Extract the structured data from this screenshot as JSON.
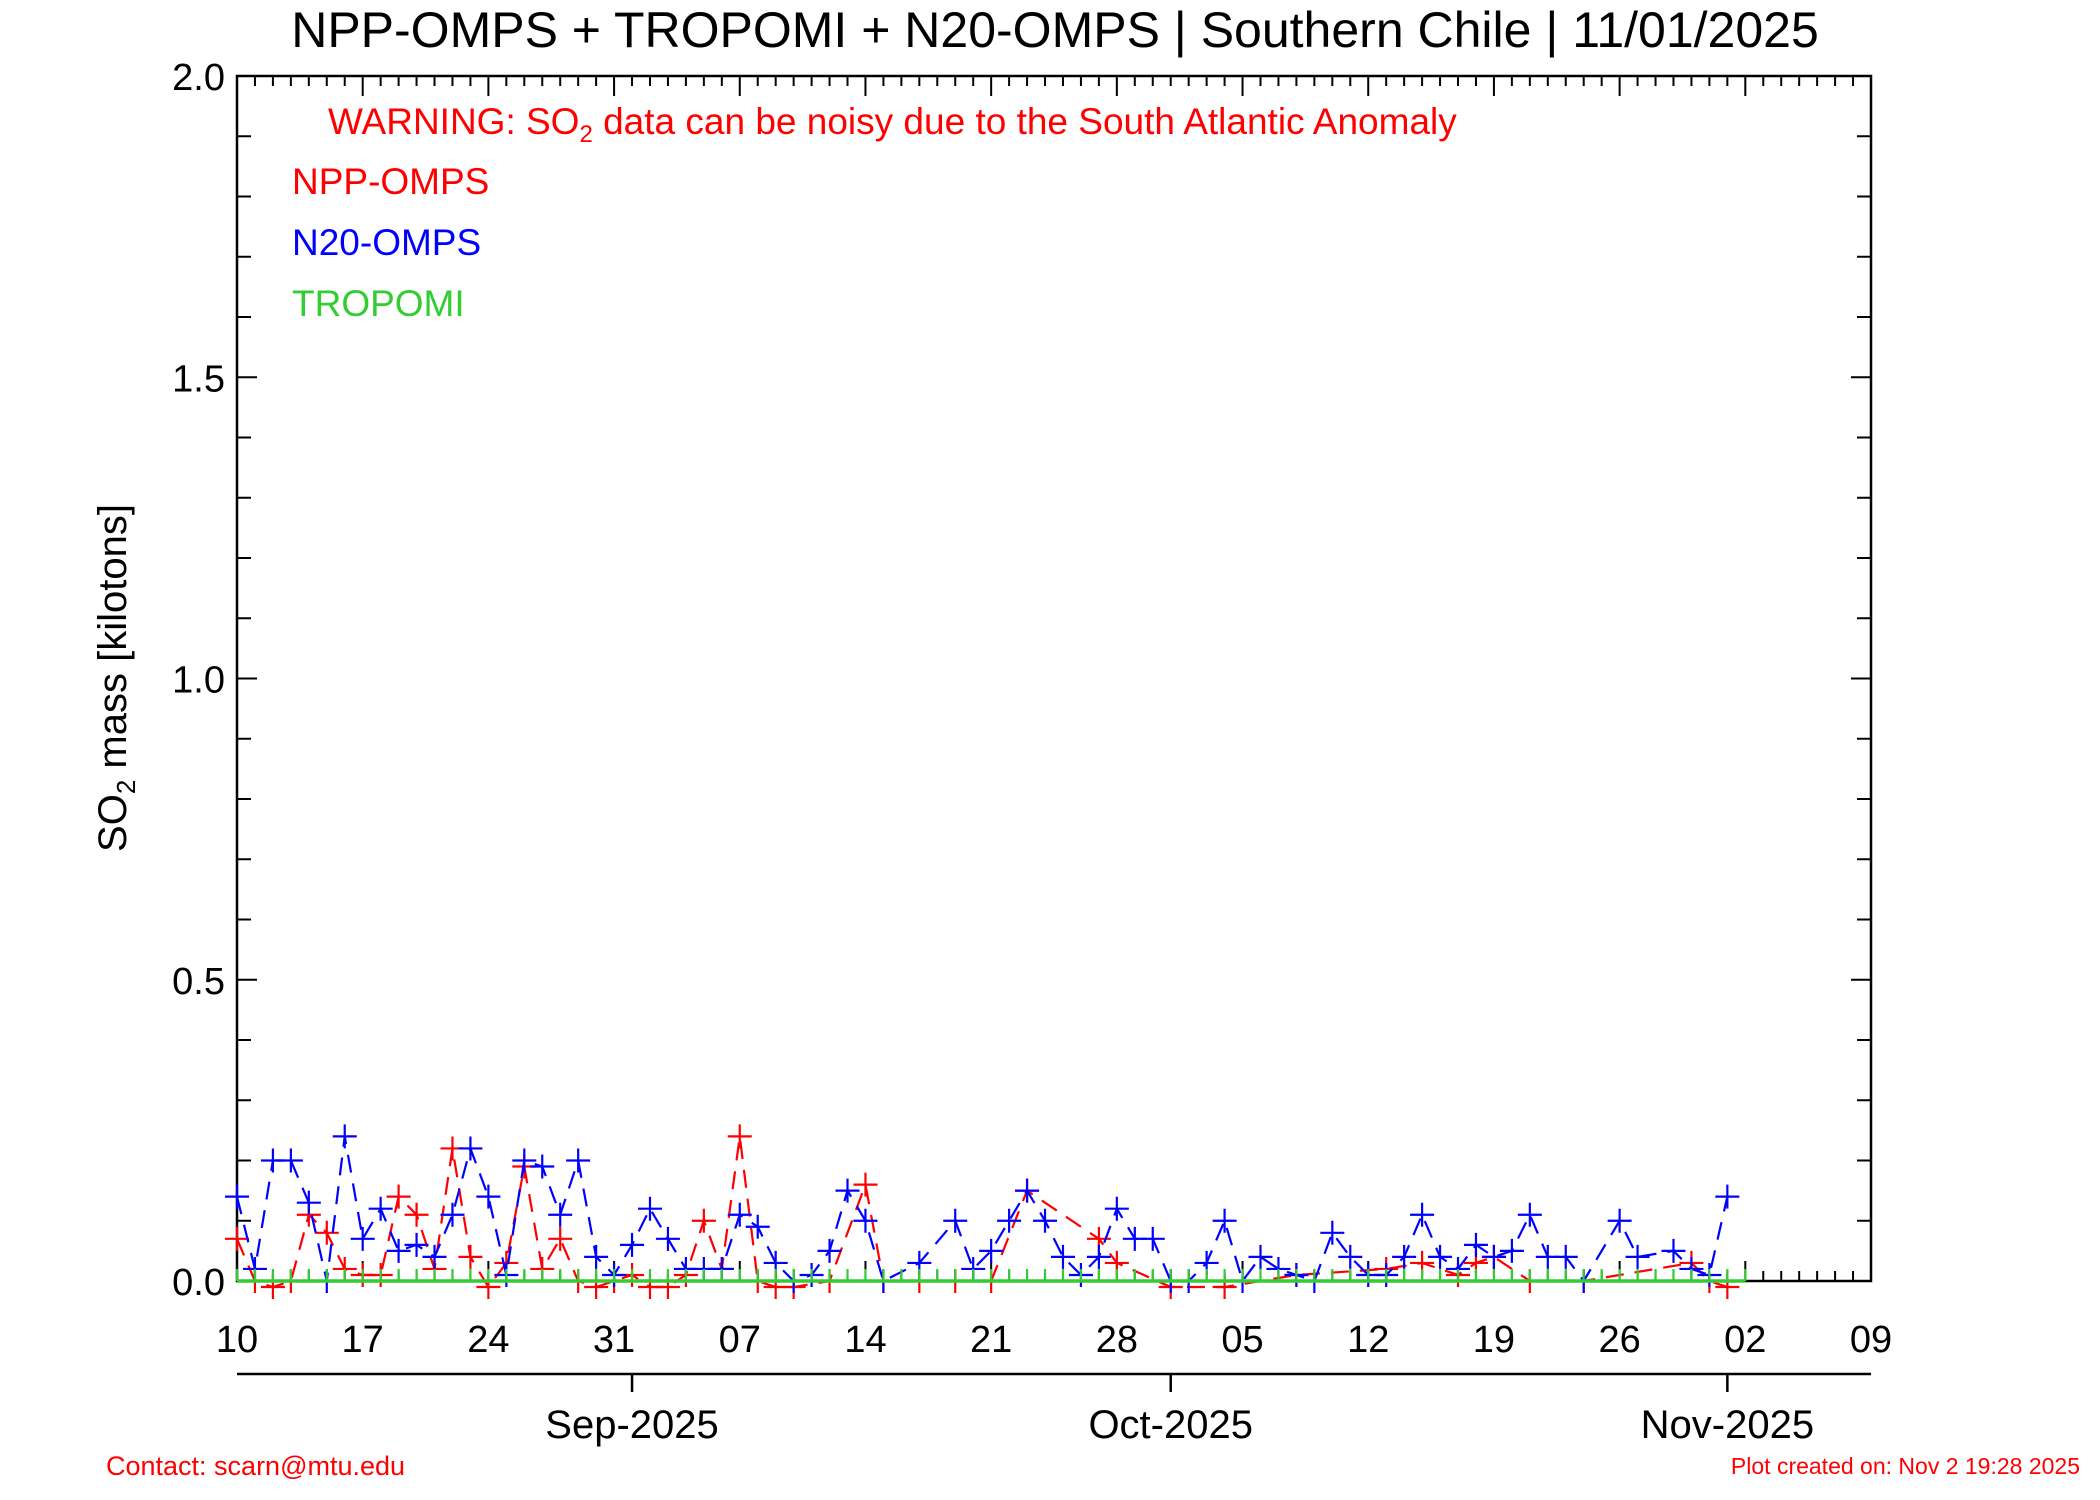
{
  "chart_data": {
    "type": "line",
    "title": "NPP-OMPS + TROPOMI + N20-OMPS | Southern Chile | 11/01/2025",
    "ylabel_prefix": "SO",
    "ylabel_sub": "2",
    "ylabel_suffix": " mass [kilotons]",
    "ylim": [
      0,
      2.0
    ],
    "yticks": [
      0.0,
      0.5,
      1.0,
      1.5,
      2.0
    ],
    "ytick_labels": [
      "0.0",
      "0.5",
      "1.0",
      "1.5",
      "2.0"
    ],
    "xlim": [
      "2025-08-10",
      "2025-11-09"
    ],
    "xticks": [
      "2025-08-10",
      "2025-08-17",
      "2025-08-24",
      "2025-08-31",
      "2025-09-07",
      "2025-09-14",
      "2025-09-21",
      "2025-09-28",
      "2025-10-05",
      "2025-10-12",
      "2025-10-19",
      "2025-10-26",
      "2025-11-02",
      "2025-11-09"
    ],
    "xtick_labels": [
      "10",
      "17",
      "24",
      "31",
      "07",
      "14",
      "21",
      "28",
      "05",
      "12",
      "19",
      "26",
      "02",
      "09"
    ],
    "month_ticks": [
      "2025-09-01",
      "2025-10-01",
      "2025-11-01"
    ],
    "month_labels": [
      "Sep-2025",
      "Oct-2025",
      "Nov-2025"
    ],
    "warning": {
      "prefix": "WARNING: SO",
      "sub": "2",
      "suffix": " data can be noisy due to the South Atlantic Anomaly",
      "color": "#ff0000"
    },
    "legend": {
      "placement": "top-left",
      "entries": [
        {
          "label": "NPP-OMPS",
          "color": "#ff0000"
        },
        {
          "label": "N20-OMPS",
          "color": "#0000ff"
        },
        {
          "label": "TROPOMI",
          "color": "#33cc33"
        }
      ]
    },
    "series": [
      {
        "name": "NPP-OMPS",
        "color": "#ff0000",
        "style": "dashed",
        "marker": "plus",
        "points": [
          [
            "2025-08-10",
            0.07
          ],
          [
            "2025-08-11",
            0.0
          ],
          [
            "2025-08-12",
            -0.01
          ],
          [
            "2025-08-13",
            0.0
          ],
          [
            "2025-08-14",
            0.11
          ],
          [
            "2025-08-15",
            0.08
          ],
          [
            "2025-08-16",
            0.02
          ],
          [
            "2025-08-17",
            0.01
          ],
          [
            "2025-08-18",
            0.01
          ],
          [
            "2025-08-19",
            0.14
          ],
          [
            "2025-08-20",
            0.11
          ],
          [
            "2025-08-21",
            0.02
          ],
          [
            "2025-08-22",
            0.22
          ],
          [
            "2025-08-23",
            0.04
          ],
          [
            "2025-08-24",
            -0.01
          ],
          [
            "2025-08-25",
            0.03
          ],
          [
            "2025-08-26",
            0.19
          ],
          [
            "2025-08-27",
            0.02
          ],
          [
            "2025-08-28",
            0.07
          ],
          [
            "2025-08-29",
            0.0
          ],
          [
            "2025-08-30",
            -0.01
          ],
          [
            "2025-08-31",
            0.0
          ],
          [
            "2025-09-01",
            0.01
          ],
          [
            "2025-09-02",
            -0.01
          ],
          [
            "2025-09-03",
            -0.01
          ],
          [
            "2025-09-04",
            0.01
          ],
          [
            "2025-09-05",
            0.1
          ],
          [
            "2025-09-06",
            0.02
          ],
          [
            "2025-09-07",
            0.24
          ],
          [
            "2025-09-08",
            0.0
          ],
          [
            "2025-09-09",
            -0.01
          ],
          [
            "2025-09-10",
            -0.01
          ],
          [
            "2025-09-12",
            0.0
          ],
          [
            "2025-09-14",
            0.16
          ],
          [
            "2025-09-15",
            0.0
          ],
          [
            "2025-09-17",
            0.0
          ],
          [
            "2025-09-19",
            0.0
          ],
          [
            "2025-09-21",
            0.0
          ],
          [
            "2025-09-23",
            0.15
          ],
          [
            "2025-09-27",
            0.07
          ],
          [
            "2025-09-28",
            0.03
          ],
          [
            "2025-10-01",
            -0.01
          ],
          [
            "2025-10-04",
            -0.01
          ],
          [
            "2025-10-08",
            0.01
          ],
          [
            "2025-10-13",
            0.02
          ],
          [
            "2025-10-15",
            0.03
          ],
          [
            "2025-10-17",
            0.01
          ],
          [
            "2025-10-18",
            0.03
          ],
          [
            "2025-10-19",
            0.04
          ],
          [
            "2025-10-21",
            0.0
          ],
          [
            "2025-10-24",
            0.0
          ],
          [
            "2025-10-30",
            0.03
          ],
          [
            "2025-10-31",
            0.0
          ],
          [
            "2025-11-01",
            -0.01
          ]
        ]
      },
      {
        "name": "N20-OMPS",
        "color": "#0000ff",
        "style": "dashed",
        "marker": "plus",
        "points": [
          [
            "2025-08-10",
            0.14
          ],
          [
            "2025-08-11",
            0.02
          ],
          [
            "2025-08-12",
            0.2
          ],
          [
            "2025-08-13",
            0.2
          ],
          [
            "2025-08-14",
            0.13
          ],
          [
            "2025-08-15",
            0.0
          ],
          [
            "2025-08-16",
            0.24
          ],
          [
            "2025-08-17",
            0.07
          ],
          [
            "2025-08-18",
            0.12
          ],
          [
            "2025-08-19",
            0.05
          ],
          [
            "2025-08-20",
            0.06
          ],
          [
            "2025-08-21",
            0.04
          ],
          [
            "2025-08-22",
            0.11
          ],
          [
            "2025-08-23",
            0.22
          ],
          [
            "2025-08-24",
            0.14
          ],
          [
            "2025-08-25",
            0.01
          ],
          [
            "2025-08-26",
            0.2
          ],
          [
            "2025-08-27",
            0.19
          ],
          [
            "2025-08-28",
            0.11
          ],
          [
            "2025-08-29",
            0.2
          ],
          [
            "2025-08-30",
            0.04
          ],
          [
            "2025-08-31",
            0.01
          ],
          [
            "2025-09-01",
            0.06
          ],
          [
            "2025-09-02",
            0.12
          ],
          [
            "2025-09-03",
            0.07
          ],
          [
            "2025-09-04",
            0.02
          ],
          [
            "2025-09-05",
            0.02
          ],
          [
            "2025-09-06",
            0.02
          ],
          [
            "2025-09-07",
            0.11
          ],
          [
            "2025-09-08",
            0.09
          ],
          [
            "2025-09-09",
            0.03
          ],
          [
            "2025-09-10",
            0.0
          ],
          [
            "2025-09-11",
            0.01
          ],
          [
            "2025-09-12",
            0.05
          ],
          [
            "2025-09-13",
            0.15
          ],
          [
            "2025-09-14",
            0.1
          ],
          [
            "2025-09-15",
            0.0
          ],
          [
            "2025-09-17",
            0.03
          ],
          [
            "2025-09-19",
            0.1
          ],
          [
            "2025-09-20",
            0.02
          ],
          [
            "2025-09-21",
            0.05
          ],
          [
            "2025-09-22",
            0.1
          ],
          [
            "2025-09-23",
            0.15
          ],
          [
            "2025-09-24",
            0.1
          ],
          [
            "2025-09-25",
            0.04
          ],
          [
            "2025-09-26",
            0.01
          ],
          [
            "2025-09-27",
            0.04
          ],
          [
            "2025-09-28",
            0.12
          ],
          [
            "2025-09-29",
            0.07
          ],
          [
            "2025-09-30",
            0.07
          ],
          [
            "2025-10-01",
            0.0
          ],
          [
            "2025-10-02",
            0.0
          ],
          [
            "2025-10-03",
            0.03
          ],
          [
            "2025-10-04",
            0.1
          ],
          [
            "2025-10-05",
            0.0
          ],
          [
            "2025-10-06",
            0.04
          ],
          [
            "2025-10-07",
            0.02
          ],
          [
            "2025-10-08",
            0.01
          ],
          [
            "2025-10-09",
            0.0
          ],
          [
            "2025-10-10",
            0.08
          ],
          [
            "2025-10-11",
            0.04
          ],
          [
            "2025-10-12",
            0.01
          ],
          [
            "2025-10-13",
            0.01
          ],
          [
            "2025-10-14",
            0.04
          ],
          [
            "2025-10-15",
            0.11
          ],
          [
            "2025-10-16",
            0.04
          ],
          [
            "2025-10-17",
            0.02
          ],
          [
            "2025-10-18",
            0.06
          ],
          [
            "2025-10-19",
            0.04
          ],
          [
            "2025-10-20",
            0.05
          ],
          [
            "2025-10-21",
            0.11
          ],
          [
            "2025-10-22",
            0.04
          ],
          [
            "2025-10-23",
            0.04
          ],
          [
            "2025-10-24",
            0.0
          ],
          [
            "2025-10-26",
            0.1
          ],
          [
            "2025-10-27",
            0.04
          ],
          [
            "2025-10-29",
            0.05
          ],
          [
            "2025-10-30",
            0.02
          ],
          [
            "2025-10-31",
            0.01
          ],
          [
            "2025-11-01",
            0.14
          ]
        ]
      },
      {
        "name": "TROPOMI",
        "color": "#33cc33",
        "style": "dotted",
        "marker": "none",
        "value": 0.0,
        "start": "2025-08-10",
        "end": "2025-11-02"
      }
    ],
    "grid": false
  },
  "footer": {
    "contact": "Contact: scarn@mtu.edu",
    "created": "Plot created on: Nov  2 19:28 2025"
  }
}
